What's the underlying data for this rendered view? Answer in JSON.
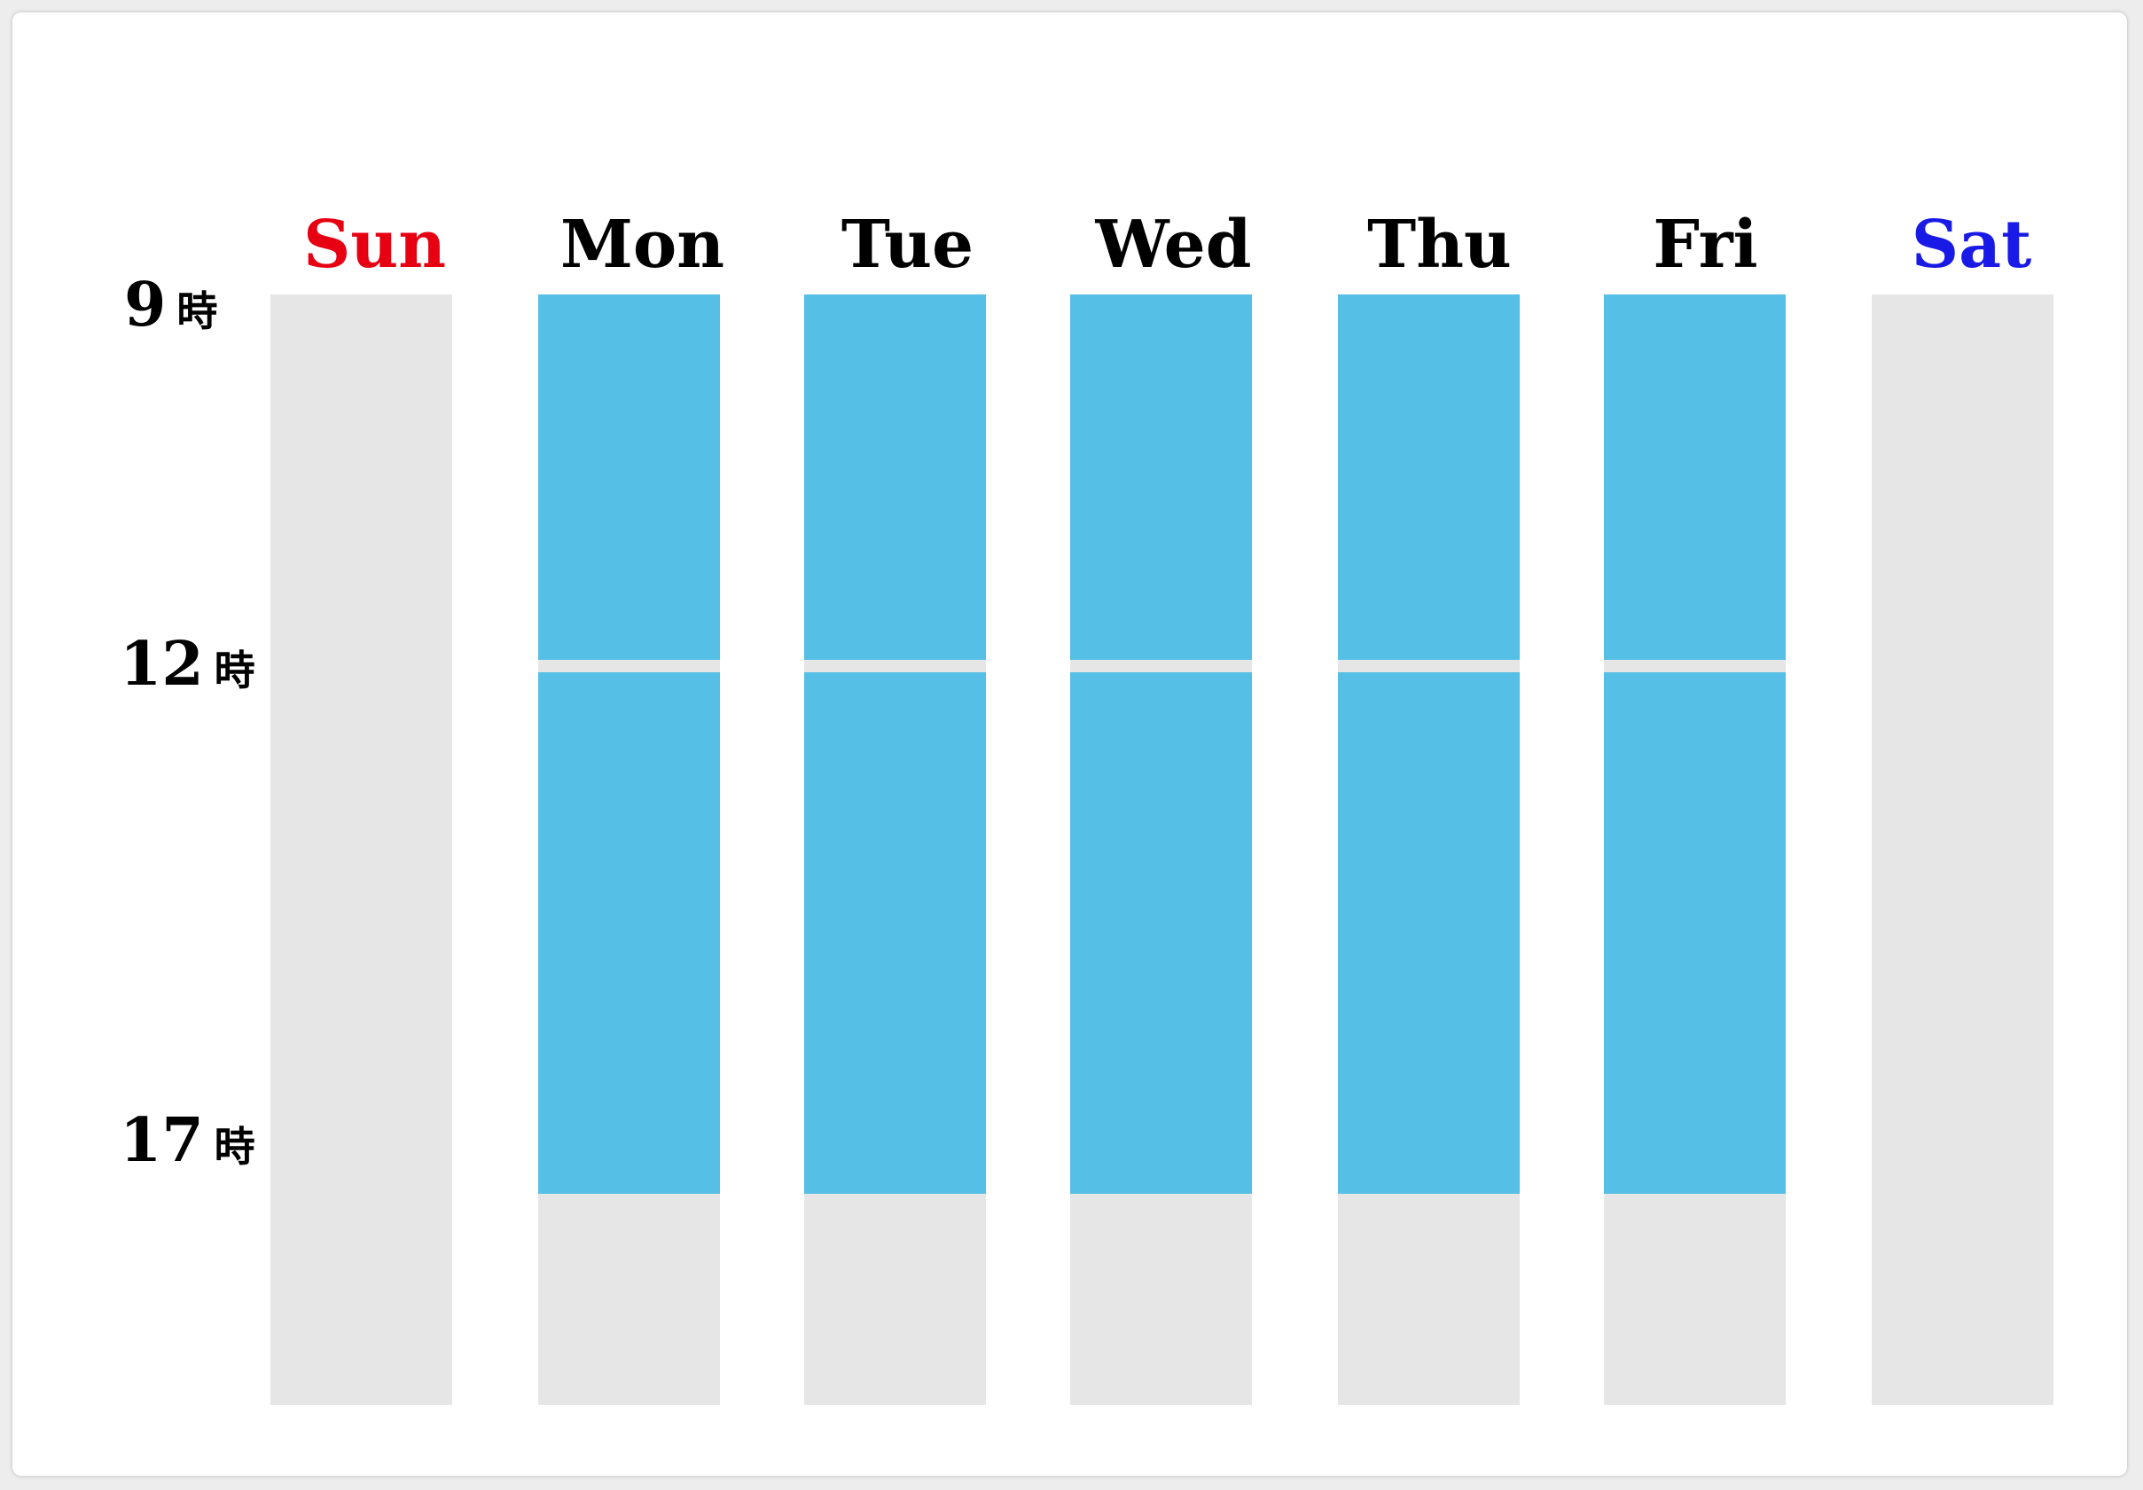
{
  "days": [
    {
      "label": "Sun",
      "color": "#e60012",
      "open": false
    },
    {
      "label": "Mon",
      "color": "#000000",
      "open": true
    },
    {
      "label": "Tue",
      "color": "#000000",
      "open": true
    },
    {
      "label": "Wed",
      "color": "#000000",
      "open": true
    },
    {
      "label": "Thu",
      "color": "#000000",
      "open": true
    },
    {
      "label": "Fri",
      "color": "#000000",
      "open": true
    },
    {
      "label": "Sat",
      "color": "#1a1ae6",
      "open": false
    }
  ],
  "hours": [
    {
      "num": "9",
      "unit": "時"
    },
    {
      "num": "12",
      "unit": "時"
    },
    {
      "num": "17",
      "unit": "時"
    }
  ],
  "schedule": {
    "morning": {
      "start": 9,
      "end": 12
    },
    "afternoon": {
      "start": 12,
      "end": 17
    }
  },
  "colors": {
    "open": "#55bfe6",
    "closed": "#e6e6e6",
    "sunday": "#e60012",
    "saturday": "#1a1ae6"
  }
}
